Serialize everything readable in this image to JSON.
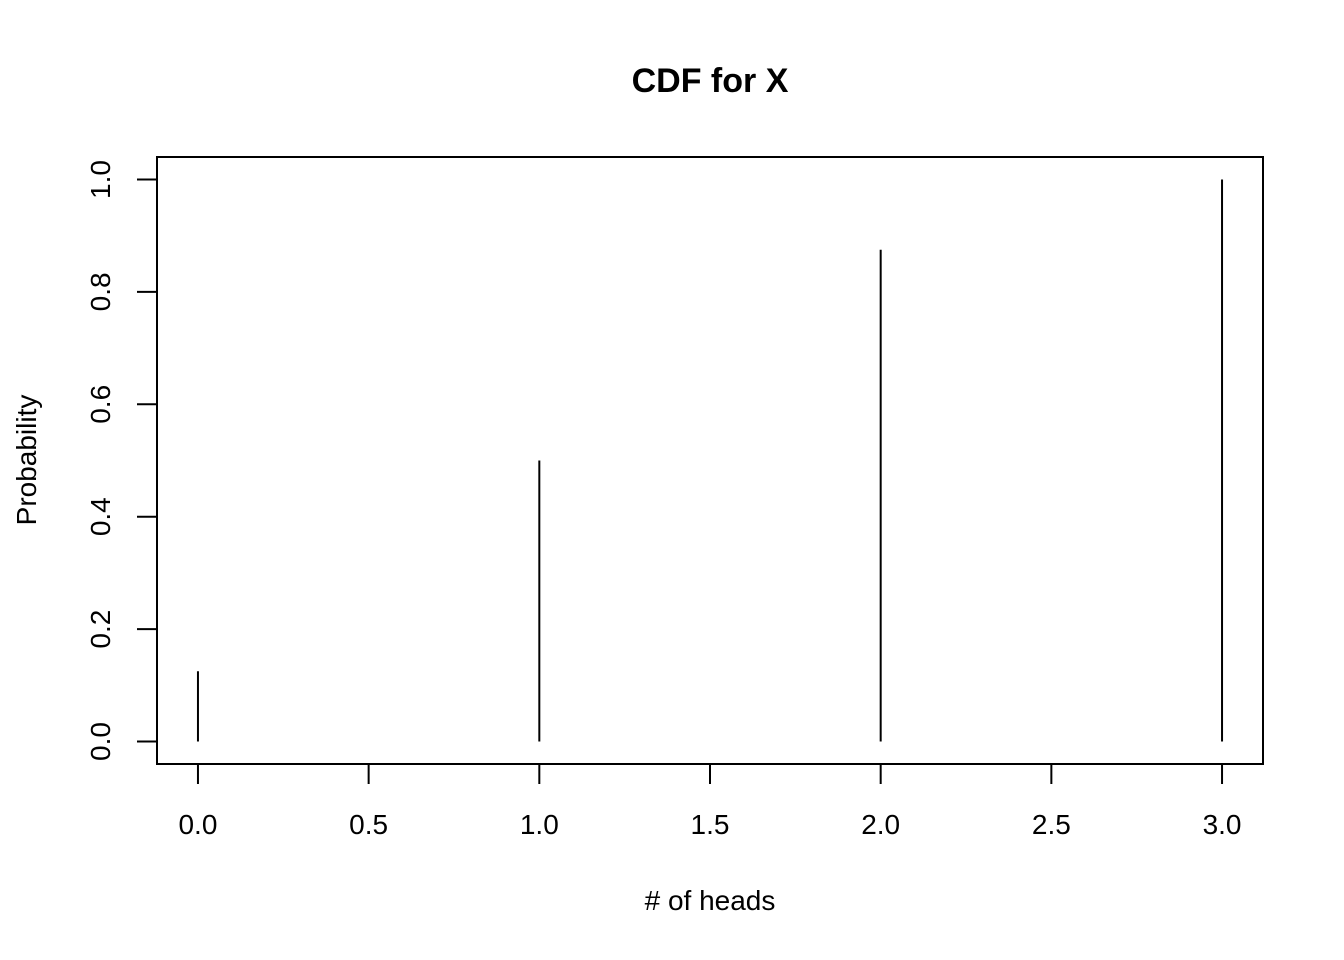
{
  "chart_data": {
    "type": "bar",
    "title": "CDF for X",
    "xlabel": "# of heads",
    "ylabel": "Probability",
    "x": [
      0,
      1,
      2,
      3
    ],
    "values": [
      0.125,
      0.5,
      0.875,
      1.0
    ],
    "xlim": [
      -0.12,
      3.12
    ],
    "ylim": [
      -0.04,
      1.04
    ],
    "x_ticks": [
      "0.0",
      "0.5",
      "1.0",
      "1.5",
      "2.0",
      "2.5",
      "3.0"
    ],
    "x_tick_values": [
      0,
      0.5,
      1,
      1.5,
      2,
      2.5,
      3
    ],
    "y_ticks": [
      "0.0",
      "0.2",
      "0.4",
      "0.6",
      "0.8",
      "1.0"
    ],
    "y_tick_values": [
      0,
      0.2,
      0.4,
      0.6,
      0.8,
      1.0
    ],
    "grid": false,
    "line_color": "#000000"
  }
}
